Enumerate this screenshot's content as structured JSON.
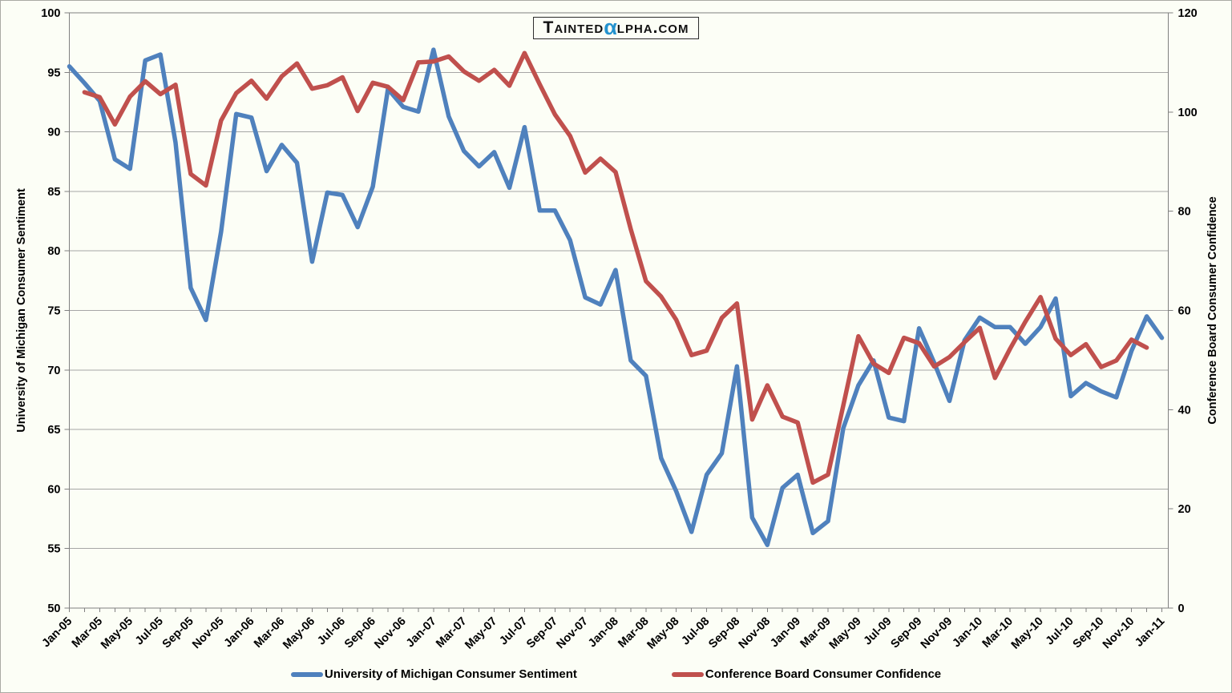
{
  "logo": {
    "prefix": "Tainted",
    "alpha_char": "α",
    "suffix": "lpha.com",
    "alpha_color": "#2492CE",
    "text_color": "#111111"
  },
  "chart_data": {
    "type": "line",
    "left_axis": {
      "title": "University of Michigan Consumer Sentiment",
      "min": 50,
      "max": 100,
      "tick_labels": [
        "100",
        "95",
        "90",
        "85",
        "80",
        "75",
        "70",
        "65",
        "60",
        "55",
        "50"
      ]
    },
    "right_axis": {
      "title": "Conference Board Consumer Confidence",
      "min": 0,
      "max": 120,
      "tick_labels": [
        "120",
        "100",
        "80",
        "60",
        "40",
        "20",
        "0"
      ]
    },
    "x_axis": {
      "first_month": "Jan-05",
      "last_month": "Jan-11",
      "months_total": 73,
      "tick_labels": [
        "Jan-05",
        "Mar-05",
        "May-05",
        "Jul-05",
        "Sep-05",
        "Nov-05",
        "Jan-06",
        "Mar-06",
        "May-06",
        "Jul-06",
        "Sep-06",
        "Nov-06",
        "Jan-07",
        "Mar-07",
        "May-07",
        "Jul-07",
        "Sep-07",
        "Nov-07",
        "Jan-08",
        "Mar-08",
        "May-08",
        "Jul-08",
        "Sep-08",
        "Nov-08",
        "Jan-09",
        "Mar-09",
        "May-09",
        "Jul-09",
        "Sep-09",
        "Nov-09",
        "Jan-10",
        "Mar-10",
        "May-10",
        "Jul-10",
        "Sep-10",
        "Nov-10",
        "Jan-11"
      ]
    },
    "grid": {
      "on": true,
      "step_left_units": 5,
      "color": "#A6A6A6"
    },
    "axis_line_color": "#808080",
    "legend_position": "bottom",
    "series": [
      {
        "name": "University of Michigan Consumer Sentiment",
        "axis": "left",
        "color": "#4F81BD",
        "values": [
          95.5,
          94.1,
          92.6,
          87.7,
          86.9,
          96.0,
          96.5,
          89.1,
          76.9,
          74.2,
          81.6,
          91.5,
          91.2,
          86.7,
          88.9,
          87.4,
          79.1,
          84.9,
          84.7,
          82.0,
          85.4,
          93.6,
          92.1,
          91.7,
          96.9,
          91.3,
          88.4,
          87.1,
          88.3,
          85.3,
          90.4,
          83.4,
          83.4,
          80.9,
          76.1,
          75.5,
          78.4,
          70.8,
          69.5,
          62.6,
          59.8,
          56.4,
          61.2,
          63.0,
          70.3,
          57.6,
          55.3,
          60.1,
          61.2,
          56.3,
          57.3,
          65.1,
          68.7,
          70.8,
          66.0,
          65.7,
          73.5,
          70.6,
          67.4,
          72.5,
          74.4,
          73.6,
          73.6,
          72.2,
          73.6,
          76.0,
          67.8,
          68.9,
          68.2,
          67.7,
          71.6,
          74.5,
          72.7
        ]
      },
      {
        "name": "Conference Board Consumer Confidence",
        "axis": "right",
        "color": "#C0504D",
        "values": [
          null,
          104.0,
          103.0,
          97.5,
          103.1,
          106.2,
          103.6,
          105.5,
          87.5,
          85.2,
          98.3,
          103.8,
          106.3,
          102.7,
          107.2,
          109.8,
          104.7,
          105.4,
          107.0,
          100.2,
          105.9,
          105.1,
          102.4,
          110.0,
          110.2,
          111.2,
          108.2,
          106.3,
          108.5,
          105.3,
          111.9,
          105.6,
          99.5,
          95.2,
          87.8,
          90.6,
          87.9,
          76.4,
          65.9,
          62.8,
          58.1,
          51.0,
          51.9,
          58.5,
          61.4,
          38.0,
          44.9,
          38.6,
          37.4,
          25.3,
          26.9,
          40.8,
          54.8,
          49.3,
          47.4,
          54.5,
          53.4,
          48.7,
          50.6,
          53.6,
          56.5,
          46.4,
          52.3,
          57.7,
          62.7,
          54.3,
          51.0,
          53.2,
          48.6,
          49.9,
          54.1,
          52.5,
          null
        ]
      }
    ]
  }
}
